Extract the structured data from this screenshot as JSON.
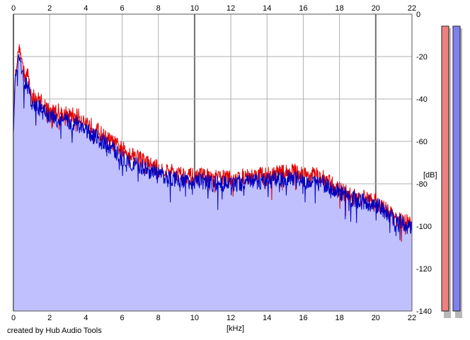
{
  "chart_data": {
    "type": "area",
    "title": "",
    "xlabel": "[kHz]",
    "ylabel": "[dB]",
    "xlim": [
      0,
      22
    ],
    "ylim": [
      -140,
      0
    ],
    "x_ticks": [
      "0",
      "2",
      "4",
      "6",
      "8",
      "10",
      "12",
      "14",
      "16",
      "18",
      "20",
      "22"
    ],
    "y_ticks": [
      "0",
      "-20",
      "-40",
      "-60",
      "-80",
      "-100",
      "-120",
      "-140"
    ],
    "grid": true,
    "fill_color": "#c0c0ff",
    "series": [
      {
        "color": "#e00000",
        "points": [
          [
            0,
            -55
          ],
          [
            0.1,
            -28
          ],
          [
            0.2,
            -22
          ],
          [
            0.3,
            -15
          ],
          [
            0.4,
            -18
          ],
          [
            0.6,
            -28
          ],
          [
            0.8,
            -28
          ],
          [
            1,
            -38
          ],
          [
            1.5,
            -40
          ],
          [
            2,
            -45
          ],
          [
            2.5,
            -45
          ],
          [
            3,
            -47
          ],
          [
            3.5,
            -47
          ],
          [
            4,
            -50
          ],
          [
            4.5,
            -53
          ],
          [
            5,
            -57
          ],
          [
            5.5,
            -60
          ],
          [
            6,
            -63
          ],
          [
            6.5,
            -65
          ],
          [
            7,
            -67
          ],
          [
            7.5,
            -70
          ],
          [
            8,
            -72
          ],
          [
            8.5,
            -73
          ],
          [
            9,
            -74
          ],
          [
            9.5,
            -75
          ],
          [
            10,
            -76
          ],
          [
            10.5,
            -75
          ],
          [
            11,
            -77
          ],
          [
            11.5,
            -76
          ],
          [
            12,
            -77
          ],
          [
            12.5,
            -76
          ],
          [
            13,
            -76
          ],
          [
            13.5,
            -75
          ],
          [
            14,
            -75
          ],
          [
            14.5,
            -74
          ],
          [
            15,
            -74
          ],
          [
            15.5,
            -73
          ],
          [
            16,
            -75
          ],
          [
            16.5,
            -75
          ],
          [
            17,
            -76
          ],
          [
            17.5,
            -79
          ],
          [
            18,
            -82
          ],
          [
            18.5,
            -84
          ],
          [
            19,
            -86
          ],
          [
            19.5,
            -86
          ],
          [
            20,
            -87
          ],
          [
            20.5,
            -91
          ],
          [
            21,
            -95
          ],
          [
            21.5,
            -97
          ],
          [
            22,
            -98
          ]
        ],
        "values_note": ""
      },
      {
        "color": "#0000c0",
        "points": [
          [
            0,
            -55
          ],
          [
            0.1,
            -30
          ],
          [
            0.2,
            -25
          ],
          [
            0.3,
            -20
          ],
          [
            0.4,
            -22
          ],
          [
            0.6,
            -32
          ],
          [
            0.8,
            -33
          ],
          [
            1,
            -42
          ],
          [
            1.5,
            -44
          ],
          [
            2,
            -48
          ],
          [
            2.5,
            -49
          ],
          [
            3,
            -50
          ],
          [
            3.5,
            -51
          ],
          [
            4,
            -54
          ],
          [
            4.5,
            -57
          ],
          [
            5,
            -60
          ],
          [
            5.5,
            -63
          ],
          [
            6,
            -67
          ],
          [
            6.5,
            -69
          ],
          [
            7,
            -71
          ],
          [
            7.5,
            -73
          ],
          [
            8,
            -75
          ],
          [
            8.5,
            -76
          ],
          [
            9,
            -77
          ],
          [
            9.5,
            -78
          ],
          [
            10,
            -78
          ],
          [
            10.5,
            -78
          ],
          [
            11,
            -79
          ],
          [
            11.5,
            -79
          ],
          [
            12,
            -79
          ],
          [
            12.5,
            -79
          ],
          [
            13,
            -78
          ],
          [
            13.5,
            -78
          ],
          [
            14,
            -78
          ],
          [
            14.5,
            -77
          ],
          [
            15,
            -77
          ],
          [
            15.5,
            -76
          ],
          [
            16,
            -78
          ],
          [
            16.5,
            -78
          ],
          [
            17,
            -79
          ],
          [
            17.5,
            -81
          ],
          [
            18,
            -83
          ],
          [
            18.5,
            -85
          ],
          [
            19,
            -87
          ],
          [
            19.5,
            -88
          ],
          [
            20,
            -89
          ],
          [
            20.5,
            -92
          ],
          [
            21,
            -96
          ],
          [
            21.5,
            -98
          ],
          [
            22,
            -100
          ]
        ]
      }
    ],
    "meters": [
      {
        "color": "#f08080",
        "level": -140
      },
      {
        "color": "#8080f0",
        "level": -140
      }
    ]
  },
  "credit": "created by Hub Audio Tools"
}
